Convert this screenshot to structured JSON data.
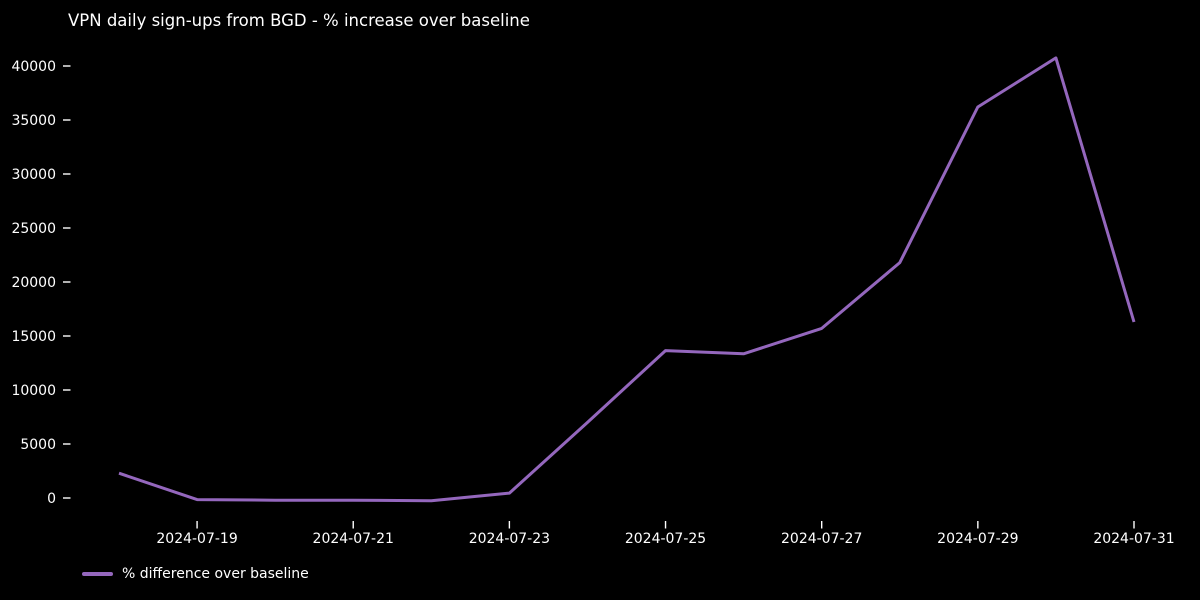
{
  "window": {
    "background_color": "#000000",
    "text_color": "#ffffff"
  },
  "chart": {
    "title": "VPN daily sign-ups from BGD - % increase over baseline",
    "legend_label": "% difference over baseline",
    "line_color": "#9467bd"
  },
  "chart_data": {
    "type": "line",
    "title": "VPN daily sign-ups from BGD - % increase over baseline",
    "x": [
      "2024-07-18",
      "2024-07-19",
      "2024-07-20",
      "2024-07-21",
      "2024-07-22",
      "2024-07-23",
      "2024-07-24",
      "2024-07-25",
      "2024-07-26",
      "2024-07-27",
      "2024-07-28",
      "2024-07-29",
      "2024-07-30",
      "2024-07-31"
    ],
    "series": [
      {
        "name": "% difference over baseline",
        "values": [
          2300,
          -150,
          -200,
          -200,
          -250,
          450,
          7000,
          13650,
          13350,
          15700,
          21800,
          36200,
          40750,
          16300
        ]
      }
    ],
    "xticks": [
      "2024-07-19",
      "2024-07-21",
      "2024-07-23",
      "2024-07-25",
      "2024-07-27",
      "2024-07-29",
      "2024-07-31"
    ],
    "yticks": [
      0,
      5000,
      10000,
      15000,
      20000,
      25000,
      30000,
      35000,
      40000
    ],
    "xlabel": "",
    "ylabel": "",
    "ylim": [
      -2300,
      42800
    ],
    "grid": false,
    "legend_position": "lower left",
    "background": "#000000",
    "line_color": "#9467bd"
  }
}
